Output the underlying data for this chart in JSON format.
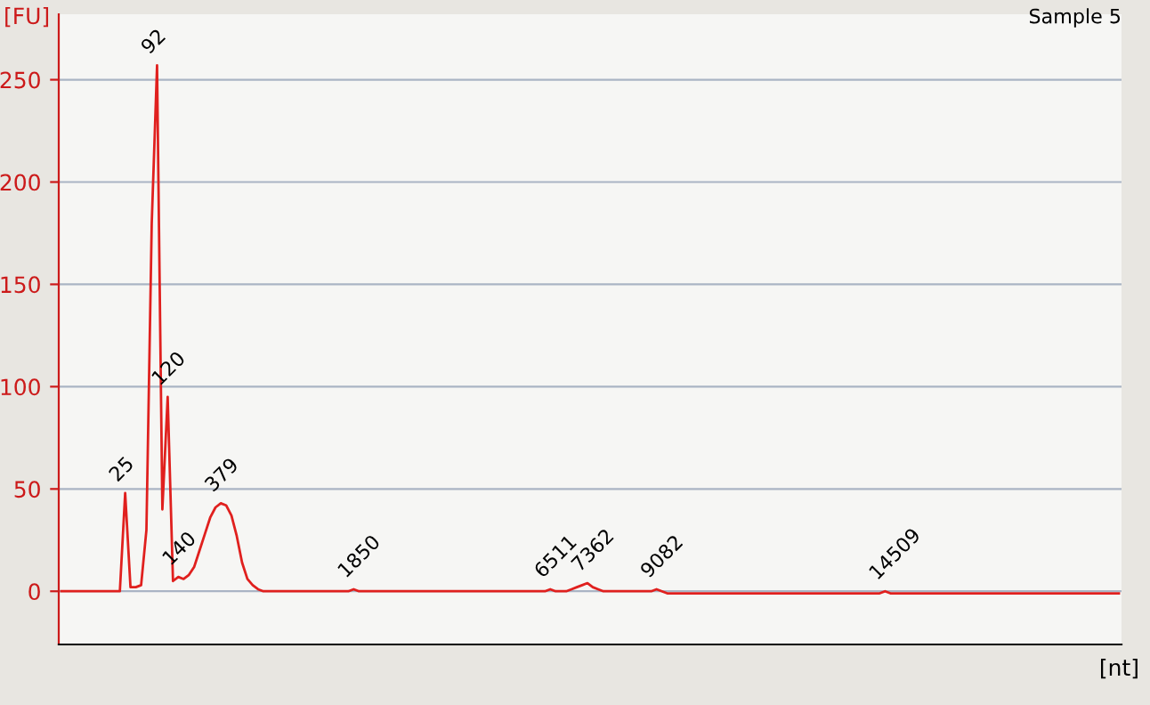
{
  "chart_data": {
    "type": "line",
    "title": "Sample 5",
    "xlabel": "[nt]",
    "ylabel": "[FU]",
    "categories": [
      null,
      null,
      null,
      null,
      null,
      null,
      null,
      null,
      null,
      null,
      null,
      null,
      null,
      null,
      null,
      null,
      null,
      null,
      null,
      null,
      null,
      null,
      null,
      null,
      null,
      null,
      null,
      null,
      null,
      null,
      null,
      null,
      null,
      null,
      null,
      null,
      null,
      null,
      null,
      null,
      null,
      null,
      null,
      null,
      null,
      null,
      null,
      null,
      null,
      null,
      null,
      null,
      null,
      null,
      null,
      null,
      null,
      null,
      null,
      null,
      null,
      null,
      null,
      null,
      null,
      null,
      null,
      null,
      null,
      null,
      null,
      null,
      null,
      null,
      null,
      null,
      null,
      null,
      null,
      null,
      null,
      null,
      null,
      null,
      null,
      null,
      null,
      null,
      null,
      null,
      null,
      null,
      null,
      null,
      null,
      null,
      null,
      null,
      null,
      null,
      null,
      null,
      null,
      null,
      null,
      null,
      null,
      null,
      null,
      null,
      null,
      null,
      null,
      null,
      null,
      null,
      null,
      null,
      null,
      null,
      null,
      null,
      null,
      null,
      null,
      null,
      null,
      null,
      null,
      null,
      null,
      null,
      null,
      null,
      null,
      null,
      null,
      null,
      null,
      null,
      null,
      null,
      null,
      null,
      null,
      null,
      null,
      null,
      null,
      null,
      null,
      null,
      null,
      null,
      null,
      null,
      null,
      null,
      null,
      null,
      null,
      null,
      null,
      null,
      null,
      null,
      null,
      null,
      null,
      null,
      null,
      null,
      null,
      null,
      null,
      null,
      null,
      null,
      null,
      null,
      null,
      null,
      null,
      null,
      null,
      null,
      null,
      null,
      null,
      null,
      null,
      null,
      null,
      null,
      null,
      null,
      null,
      null,
      null,
      null
    ],
    "series": [
      {
        "color": "#e0201e",
        "values": [
          0,
          0,
          0,
          0,
          0,
          0,
          0,
          0,
          0,
          0,
          0,
          0,
          48,
          2,
          2,
          3,
          30,
          180,
          257,
          40,
          95,
          5,
          7,
          6,
          8,
          12,
          20,
          28,
          36,
          41,
          43,
          42,
          37,
          27,
          14,
          6,
          3,
          1,
          0,
          0,
          0,
          0,
          0,
          0,
          0,
          0,
          0,
          0,
          0,
          0,
          0,
          0,
          0,
          0,
          0,
          1,
          0,
          0,
          0,
          0,
          0,
          0,
          0,
          0,
          0,
          0,
          0,
          0,
          0,
          0,
          0,
          0,
          0,
          0,
          0,
          0,
          0,
          0,
          0,
          0,
          0,
          0,
          0,
          0,
          0,
          0,
          0,
          0,
          0,
          0,
          0,
          0,
          1,
          0,
          0,
          0,
          1,
          2,
          3,
          4,
          2,
          1,
          0,
          0,
          0,
          0,
          0,
          0,
          0,
          0,
          0,
          0,
          1,
          0,
          -1,
          -1,
          -1,
          -1,
          -1,
          -1,
          -1,
          -1,
          -1,
          -1,
          -1,
          -1,
          -1,
          -1,
          -1,
          -1,
          -1,
          -1,
          -1,
          -1,
          -1,
          -1,
          -1,
          -1,
          -1,
          -1,
          -1,
          -1,
          -1,
          -1,
          -1,
          -1,
          -1,
          -1,
          -1,
          -1,
          -1,
          -1,
          -1,
          -1,
          -1,
          0,
          -1,
          -1,
          -1,
          -1,
          -1,
          -1,
          -1,
          -1,
          -1,
          -1,
          -1,
          -1,
          -1,
          -1,
          -1,
          -1,
          -1,
          -1,
          -1,
          -1,
          -1,
          -1,
          -1,
          -1,
          -1,
          -1,
          -1,
          -1,
          -1,
          -1,
          -1,
          -1,
          -1,
          -1,
          -1,
          -1,
          -1,
          -1,
          -1,
          -1,
          -1,
          -1,
          -1,
          -1
        ]
      }
    ],
    "annotations": [
      {
        "text": "25",
        "y": 48
      },
      {
        "text": "92",
        "y": 257
      },
      {
        "text": "120",
        "y": 95
      },
      {
        "text": "140",
        "y": 7
      },
      {
        "text": "379",
        "y": 43
      },
      {
        "text": "1850",
        "y": 1
      },
      {
        "text": "6511",
        "y": 1
      },
      {
        "text": "7362",
        "y": 4
      },
      {
        "text": "9082",
        "y": 1
      },
      {
        "text": "14509",
        "y": 0
      }
    ],
    "ylim": [
      -26,
      282
    ],
    "yticks": [
      0,
      50,
      100,
      150,
      200,
      250
    ],
    "grid": "y",
    "legend": false,
    "marker": "none",
    "line_style": "solid"
  }
}
